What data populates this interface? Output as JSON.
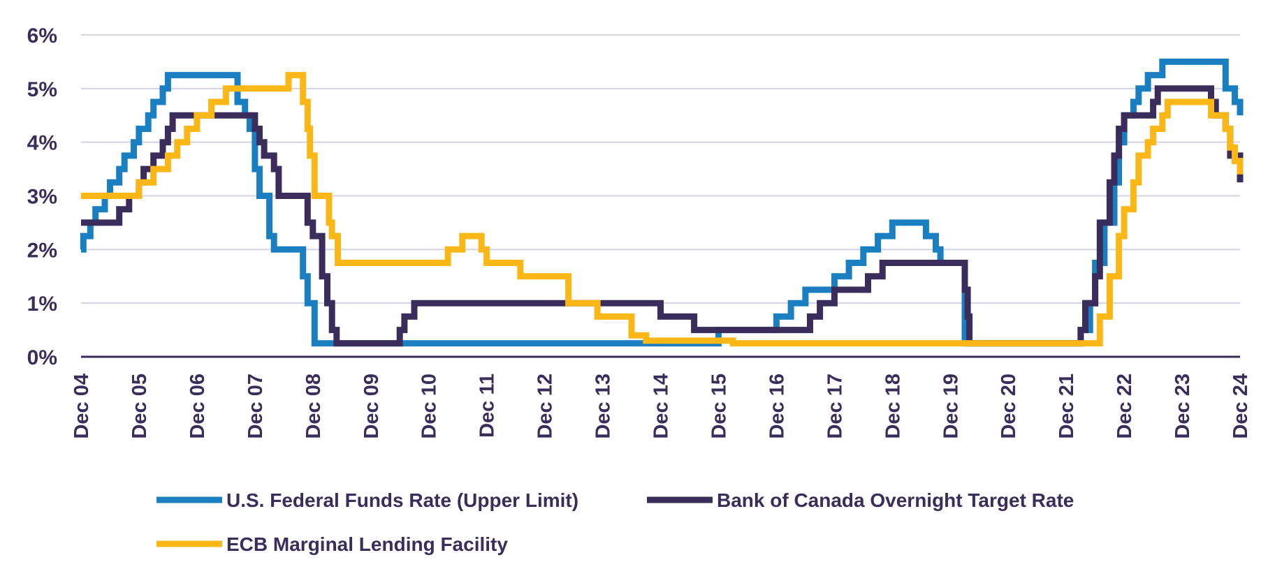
{
  "chart_data": {
    "type": "line",
    "step": true,
    "title": "",
    "xlabel": "",
    "ylabel": "",
    "ylim": [
      0,
      6
    ],
    "y_ticks": [
      0,
      1,
      2,
      3,
      4,
      5,
      6
    ],
    "y_tick_labels": [
      "0%",
      "1%",
      "2%",
      "3%",
      "4%",
      "5%",
      "6%"
    ],
    "xlim": [
      2004.92,
      2024.92
    ],
    "x_ticks": [
      2004.92,
      2005.92,
      2006.92,
      2007.92,
      2008.92,
      2009.92,
      2010.92,
      2011.92,
      2012.92,
      2013.92,
      2014.92,
      2015.92,
      2016.92,
      2017.92,
      2018.92,
      2019.92,
      2020.92,
      2021.92,
      2022.92,
      2023.92,
      2024.92
    ],
    "x_tick_labels": [
      "Dec 04",
      "Dec 05",
      "Dec 06",
      "Dec 07",
      "Dec 08",
      "Dec 09",
      "Dec 10",
      "Dec 11",
      "Dec 12",
      "Dec 13",
      "Dec 14",
      "Dec 15",
      "Dec 16",
      "Dec 17",
      "Dec 18",
      "Dec 19",
      "Dec 20",
      "Dec 21",
      "Dec 22",
      "Dec 23",
      "Dec 24"
    ],
    "grid": true,
    "legend_position": "bottom",
    "series": [
      {
        "name": "U.S. Federal Funds Rate (Upper Limit)",
        "color": "#1a7fc1",
        "points": [
          [
            2004.92,
            2.0
          ],
          [
            2004.96,
            2.25
          ],
          [
            2005.08,
            2.5
          ],
          [
            2005.17,
            2.75
          ],
          [
            2005.33,
            3.0
          ],
          [
            2005.42,
            3.25
          ],
          [
            2005.58,
            3.5
          ],
          [
            2005.67,
            3.75
          ],
          [
            2005.83,
            4.0
          ],
          [
            2005.92,
            4.25
          ],
          [
            2006.08,
            4.5
          ],
          [
            2006.17,
            4.75
          ],
          [
            2006.33,
            5.0
          ],
          [
            2006.42,
            5.25
          ],
          [
            2007.62,
            4.75
          ],
          [
            2007.75,
            4.5
          ],
          [
            2007.83,
            4.25
          ],
          [
            2007.92,
            3.5
          ],
          [
            2008.0,
            3.0
          ],
          [
            2008.17,
            2.25
          ],
          [
            2008.25,
            2.0
          ],
          [
            2008.75,
            1.5
          ],
          [
            2008.83,
            1.0
          ],
          [
            2008.95,
            0.25
          ],
          [
            2015.92,
            0.5
          ],
          [
            2016.92,
            0.75
          ],
          [
            2017.17,
            1.0
          ],
          [
            2017.42,
            1.25
          ],
          [
            2017.92,
            1.5
          ],
          [
            2018.17,
            1.75
          ],
          [
            2018.42,
            2.0
          ],
          [
            2018.67,
            2.25
          ],
          [
            2018.92,
            2.5
          ],
          [
            2019.5,
            2.25
          ],
          [
            2019.67,
            2.0
          ],
          [
            2019.75,
            1.75
          ],
          [
            2020.17,
            0.25
          ],
          [
            2022.17,
            0.5
          ],
          [
            2022.33,
            1.0
          ],
          [
            2022.42,
            1.75
          ],
          [
            2022.58,
            2.5
          ],
          [
            2022.75,
            3.25
          ],
          [
            2022.83,
            4.0
          ],
          [
            2022.92,
            4.5
          ],
          [
            2023.08,
            4.75
          ],
          [
            2023.17,
            5.0
          ],
          [
            2023.33,
            5.25
          ],
          [
            2023.58,
            5.5
          ],
          [
            2024.67,
            5.0
          ],
          [
            2024.83,
            4.75
          ],
          [
            2024.92,
            4.5
          ]
        ]
      },
      {
        "name": "Bank of Canada Overnight Target Rate",
        "color": "#3a2d5b",
        "points": [
          [
            2004.92,
            2.5
          ],
          [
            2005.58,
            2.75
          ],
          [
            2005.75,
            3.0
          ],
          [
            2005.92,
            3.25
          ],
          [
            2006.0,
            3.5
          ],
          [
            2006.17,
            3.75
          ],
          [
            2006.33,
            4.0
          ],
          [
            2006.42,
            4.25
          ],
          [
            2006.5,
            4.5
          ],
          [
            2007.92,
            4.25
          ],
          [
            2008.0,
            4.0
          ],
          [
            2008.08,
            3.75
          ],
          [
            2008.25,
            3.5
          ],
          [
            2008.33,
            3.0
          ],
          [
            2008.83,
            2.5
          ],
          [
            2008.92,
            2.25
          ],
          [
            2009.08,
            1.5
          ],
          [
            2009.17,
            1.0
          ],
          [
            2009.25,
            0.5
          ],
          [
            2009.33,
            0.25
          ],
          [
            2010.42,
            0.5
          ],
          [
            2010.5,
            0.75
          ],
          [
            2010.67,
            1.0
          ],
          [
            2014.92,
            0.75
          ],
          [
            2015.5,
            0.5
          ],
          [
            2017.5,
            0.75
          ],
          [
            2017.67,
            1.0
          ],
          [
            2017.92,
            1.25
          ],
          [
            2018.5,
            1.5
          ],
          [
            2018.75,
            1.75
          ],
          [
            2020.17,
            1.25
          ],
          [
            2020.22,
            0.75
          ],
          [
            2020.25,
            0.25
          ],
          [
            2022.17,
            0.5
          ],
          [
            2022.25,
            1.0
          ],
          [
            2022.42,
            1.5
          ],
          [
            2022.5,
            2.5
          ],
          [
            2022.67,
            3.25
          ],
          [
            2022.75,
            3.75
          ],
          [
            2022.83,
            4.25
          ],
          [
            2022.92,
            4.5
          ],
          [
            2023.42,
            4.75
          ],
          [
            2023.5,
            5.0
          ],
          [
            2024.42,
            4.75
          ],
          [
            2024.5,
            4.5
          ],
          [
            2024.67,
            4.25
          ],
          [
            2024.75,
            3.75
          ],
          [
            2024.92,
            3.25
          ]
        ]
      },
      {
        "name": "ECB Marginal Lending Facility",
        "color": "#fbb716",
        "points": [
          [
            2004.92,
            3.0
          ],
          [
            2005.92,
            3.25
          ],
          [
            2006.17,
            3.5
          ],
          [
            2006.42,
            3.75
          ],
          [
            2006.58,
            4.0
          ],
          [
            2006.75,
            4.25
          ],
          [
            2006.92,
            4.5
          ],
          [
            2007.17,
            4.75
          ],
          [
            2007.42,
            5.0
          ],
          [
            2008.5,
            5.25
          ],
          [
            2008.75,
            4.75
          ],
          [
            2008.83,
            4.25
          ],
          [
            2008.87,
            3.75
          ],
          [
            2008.95,
            3.0
          ],
          [
            2009.2,
            2.5
          ],
          [
            2009.25,
            2.25
          ],
          [
            2009.35,
            1.75
          ],
          [
            2011.25,
            2.0
          ],
          [
            2011.5,
            2.25
          ],
          [
            2011.83,
            2.0
          ],
          [
            2011.92,
            1.75
          ],
          [
            2012.5,
            1.5
          ],
          [
            2013.33,
            1.0
          ],
          [
            2013.83,
            0.75
          ],
          [
            2014.42,
            0.4
          ],
          [
            2014.67,
            0.3
          ],
          [
            2016.17,
            0.25
          ],
          [
            2022.5,
            0.75
          ],
          [
            2022.67,
            1.5
          ],
          [
            2022.83,
            2.25
          ],
          [
            2022.92,
            2.75
          ],
          [
            2023.08,
            3.25
          ],
          [
            2023.17,
            3.75
          ],
          [
            2023.33,
            4.0
          ],
          [
            2023.42,
            4.25
          ],
          [
            2023.58,
            4.5
          ],
          [
            2023.67,
            4.75
          ],
          [
            2024.42,
            4.5
          ],
          [
            2024.67,
            4.25
          ],
          [
            2024.75,
            3.9
          ],
          [
            2024.83,
            3.65
          ],
          [
            2024.92,
            3.4
          ]
        ]
      }
    ]
  }
}
